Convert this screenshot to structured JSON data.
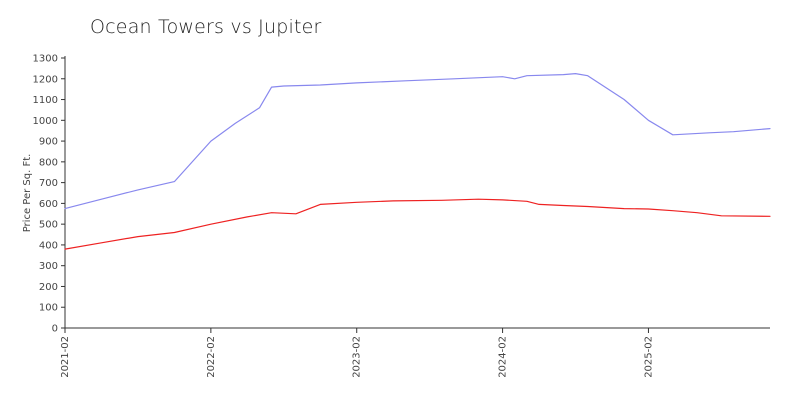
{
  "chart_data": {
    "type": "line",
    "title": "Ocean Towers vs Jupiter",
    "xlabel": "",
    "ylabel": "Price Per Sq. Ft.",
    "ylim": [
      0,
      1300
    ],
    "yticks": [
      0,
      100,
      200,
      300,
      400,
      500,
      600,
      700,
      800,
      900,
      1000,
      1100,
      1200,
      1300
    ],
    "xlim": [
      "2021-02",
      "2025-12"
    ],
    "xticks": [
      "2021-02",
      "2022-02",
      "2023-02",
      "2024-02",
      "2025-02"
    ],
    "grid": false,
    "legend": "none",
    "series": [
      {
        "color": "#8888ee",
        "points": [
          [
            "2021-02",
            575
          ],
          [
            "2021-05",
            620
          ],
          [
            "2021-08",
            665
          ],
          [
            "2021-11",
            705
          ],
          [
            "2022-02",
            900
          ],
          [
            "2022-04",
            985
          ],
          [
            "2022-06",
            1060
          ],
          [
            "2022-07",
            1160
          ],
          [
            "2022-08",
            1165
          ],
          [
            "2022-11",
            1170
          ],
          [
            "2023-02",
            1180
          ],
          [
            "2023-06",
            1190
          ],
          [
            "2023-10",
            1200
          ],
          [
            "2024-02",
            1210
          ],
          [
            "2024-03",
            1200
          ],
          [
            "2024-04",
            1215
          ],
          [
            "2024-07",
            1220
          ],
          [
            "2024-08",
            1225
          ],
          [
            "2024-09",
            1215
          ],
          [
            "2024-12",
            1100
          ],
          [
            "2025-02",
            1000
          ],
          [
            "2025-04",
            930
          ],
          [
            "2025-07",
            940
          ],
          [
            "2025-09",
            945
          ],
          [
            "2025-12",
            960
          ]
        ]
      },
      {
        "color": "#ee2222",
        "points": [
          [
            "2021-02",
            380
          ],
          [
            "2021-05",
            410
          ],
          [
            "2021-08",
            440
          ],
          [
            "2021-11",
            460
          ],
          [
            "2022-02",
            500
          ],
          [
            "2022-05",
            535
          ],
          [
            "2022-07",
            555
          ],
          [
            "2022-09",
            550
          ],
          [
            "2022-11",
            595
          ],
          [
            "2023-02",
            605
          ],
          [
            "2023-05",
            612
          ],
          [
            "2023-09",
            615
          ],
          [
            "2023-12",
            620
          ],
          [
            "2024-02",
            617
          ],
          [
            "2024-04",
            610
          ],
          [
            "2024-05",
            595
          ],
          [
            "2024-07",
            590
          ],
          [
            "2024-09",
            585
          ],
          [
            "2024-12",
            575
          ],
          [
            "2025-02",
            573
          ],
          [
            "2025-04",
            565
          ],
          [
            "2025-06",
            555
          ],
          [
            "2025-08",
            540
          ],
          [
            "2025-12",
            538
          ]
        ]
      }
    ]
  }
}
